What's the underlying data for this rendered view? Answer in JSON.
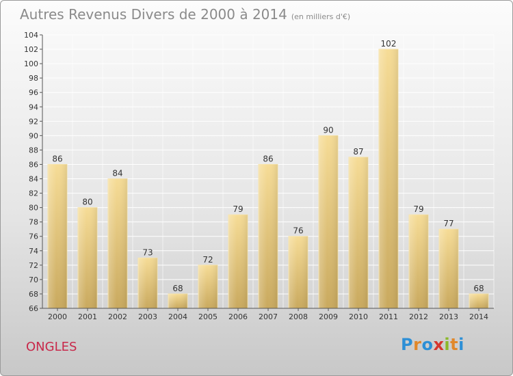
{
  "title": "Autres Revenus Divers de 2000 à 2014",
  "unit_note": "(en milliers d'€)",
  "commune": "ONGLES",
  "logo": {
    "letters": [
      "P",
      "r",
      "o",
      "x",
      "i",
      "t",
      "i"
    ],
    "colors": [
      "#2d8fd6",
      "#e1872a",
      "#2d8fd6",
      "#d6362e",
      "#8bb82a",
      "#e1872a",
      "#2d8fd6"
    ]
  },
  "chart_data": {
    "type": "bar",
    "categories": [
      "2000",
      "2001",
      "2002",
      "2003",
      "2004",
      "2005",
      "2006",
      "2007",
      "2008",
      "2009",
      "2010",
      "2011",
      "2012",
      "2013",
      "2014"
    ],
    "values": [
      86,
      80,
      84,
      73,
      68,
      72,
      79,
      86,
      76,
      90,
      87,
      102,
      79,
      77,
      68
    ],
    "ylim": [
      66,
      104
    ],
    "yticks": [
      66,
      68,
      70,
      72,
      74,
      76,
      78,
      80,
      82,
      84,
      86,
      88,
      90,
      92,
      94,
      96,
      98,
      100,
      102,
      104
    ],
    "grid": true,
    "bar_color": "#e8c878"
  }
}
